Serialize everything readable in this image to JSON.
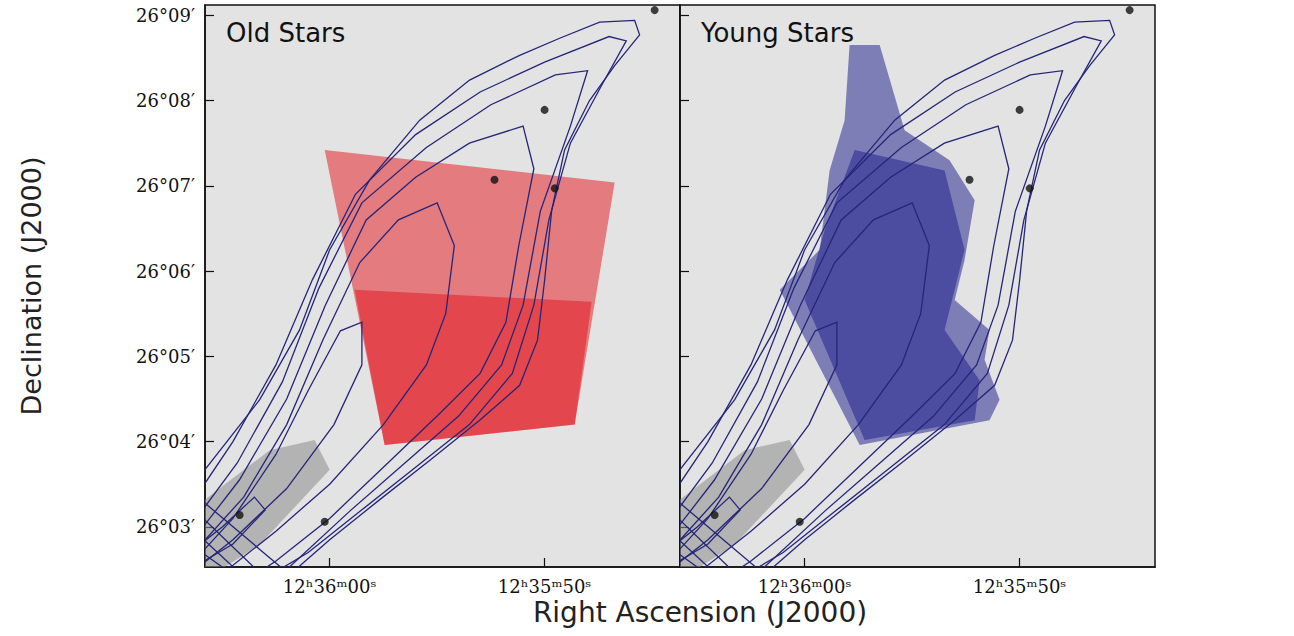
{
  "chart_data": [
    {
      "type": "image_contour",
      "title": "Old Stars",
      "xlabel": "Right Ascension (J2000)",
      "ylabel": "Declination (J2000)",
      "xlim": [
        65.8,
        43.7
      ],
      "ylim": [
        2.53,
        9.12
      ],
      "xticks": [
        {
          "value": 60,
          "label": "12ʰ36ᵐ00ˢ"
        },
        {
          "value": 50,
          "label": "12ʰ35ᵐ50ˢ"
        }
      ],
      "yticks": [
        {
          "value": 3,
          "label": "26°03′"
        },
        {
          "value": 4,
          "label": "26°04′"
        },
        {
          "value": 5,
          "label": "26°05′"
        },
        {
          "value": 6,
          "label": "26°06′"
        },
        {
          "value": 7,
          "label": "26°07′"
        },
        {
          "value": 8,
          "label": "26°08′"
        },
        {
          "value": 9,
          "label": "26°09′"
        }
      ],
      "color": "#e3131b",
      "regions": [
        [
          [
            60.23,
            7.42
          ],
          [
            46.74,
            7.04
          ],
          [
            48.6,
            4.2
          ],
          [
            57.44,
            3.96
          ]
        ],
        [
          [
            58.84,
            5.78
          ],
          [
            47.81,
            5.64
          ],
          [
            48.6,
            4.2
          ],
          [
            57.44,
            3.96
          ]
        ]
      ],
      "galaxy": [
        [
          67.0,
          3.2
        ],
        [
          65.81,
          3.32
        ],
        [
          62.79,
          3.9
        ],
        [
          60.7,
          4.02
        ],
        [
          60.0,
          3.67
        ],
        [
          63.26,
          2.79
        ],
        [
          65.81,
          2.38
        ],
        [
          67.0,
          2.3
        ]
      ],
      "stars": [
        [
          50.0,
          7.89
        ],
        [
          49.53,
          6.97
        ],
        [
          44.88,
          9.06
        ],
        [
          60.23,
          3.06
        ],
        [
          52.33,
          7.07
        ],
        [
          64.19,
          3.14
        ]
      ],
      "contours": [
        [
          [
            66.51,
            3.43
          ],
          [
            65.81,
            3.67
          ],
          [
            63.26,
            4.49
          ],
          [
            61.4,
            5.31
          ],
          [
            60.0,
            6.25
          ],
          [
            58.14,
            7.07
          ],
          [
            55.81,
            7.77
          ],
          [
            53.49,
            8.24
          ],
          [
            51.16,
            8.53
          ],
          [
            49.3,
            8.73
          ],
          [
            47.44,
            8.92
          ],
          [
            45.81,
            8.94
          ],
          [
            45.58,
            8.77
          ],
          [
            46.74,
            8.41
          ],
          [
            47.91,
            8.0
          ],
          [
            49.07,
            7.42
          ],
          [
            49.67,
            6.71
          ],
          [
            50.0,
            5.89
          ],
          [
            50.33,
            5.19
          ],
          [
            51.16,
            4.66
          ],
          [
            53.02,
            4.25
          ],
          [
            55.35,
            3.78
          ],
          [
            57.67,
            3.32
          ],
          [
            60.0,
            2.85
          ],
          [
            61.86,
            2.44
          ]
        ],
        [
          [
            66.5,
            3.25
          ],
          [
            64.5,
            4.0
          ],
          [
            62.5,
            4.9
          ],
          [
            60.8,
            5.9
          ],
          [
            58.8,
            6.9
          ],
          [
            56.0,
            7.6
          ],
          [
            53.0,
            8.1
          ],
          [
            50.0,
            8.45
          ],
          [
            47.0,
            8.75
          ],
          [
            46.2,
            8.7
          ],
          [
            47.3,
            8.2
          ],
          [
            48.8,
            7.5
          ],
          [
            49.8,
            6.6
          ],
          [
            50.5,
            5.6
          ],
          [
            51.5,
            4.8
          ],
          [
            53.5,
            4.2
          ],
          [
            56.0,
            3.7
          ],
          [
            58.5,
            3.2
          ],
          [
            61.0,
            2.7
          ],
          [
            63.0,
            2.4
          ]
        ],
        [
          [
            66.5,
            3.0
          ],
          [
            64.3,
            3.75
          ],
          [
            62.2,
            4.7
          ],
          [
            60.5,
            5.8
          ],
          [
            58.5,
            6.8
          ],
          [
            55.5,
            7.45
          ],
          [
            52.5,
            7.95
          ],
          [
            49.5,
            8.3
          ],
          [
            48.0,
            8.35
          ],
          [
            48.8,
            7.7
          ],
          [
            50.2,
            6.7
          ],
          [
            51.0,
            5.6
          ],
          [
            52.0,
            4.9
          ],
          [
            54.0,
            4.3
          ],
          [
            56.5,
            3.75
          ],
          [
            59.0,
            3.2
          ],
          [
            62.0,
            2.5
          ],
          [
            63.5,
            2.3
          ]
        ],
        [
          [
            66.5,
            2.8
          ],
          [
            64.2,
            3.55
          ],
          [
            62.0,
            4.5
          ],
          [
            60.2,
            5.6
          ],
          [
            58.3,
            6.6
          ],
          [
            56.0,
            7.1
          ],
          [
            53.5,
            7.5
          ],
          [
            51.0,
            7.7
          ],
          [
            50.5,
            7.2
          ],
          [
            51.2,
            6.3
          ],
          [
            51.8,
            5.4
          ],
          [
            53.0,
            4.8
          ],
          [
            55.0,
            4.3
          ],
          [
            57.5,
            3.7
          ],
          [
            60.0,
            3.1
          ],
          [
            62.5,
            2.6
          ],
          [
            64.0,
            2.35
          ]
        ],
        [
          [
            66.5,
            2.65
          ],
          [
            64.0,
            3.35
          ],
          [
            62.0,
            4.2
          ],
          [
            60.3,
            5.2
          ],
          [
            58.6,
            6.1
          ],
          [
            56.8,
            6.6
          ],
          [
            55.0,
            6.8
          ],
          [
            54.2,
            6.3
          ],
          [
            54.6,
            5.5
          ],
          [
            55.5,
            4.9
          ],
          [
            57.5,
            4.2
          ],
          [
            60.0,
            3.5
          ],
          [
            62.5,
            2.95
          ],
          [
            64.5,
            2.55
          ],
          [
            66.5,
            2.3
          ]
        ],
        [
          [
            66.5,
            2.55
          ],
          [
            64.5,
            3.1
          ],
          [
            62.5,
            3.85
          ],
          [
            61.0,
            4.6
          ],
          [
            59.5,
            5.3
          ],
          [
            58.5,
            5.4
          ],
          [
            58.5,
            4.9
          ],
          [
            59.8,
            4.2
          ],
          [
            62.0,
            3.45
          ],
          [
            64.5,
            2.85
          ],
          [
            66.5,
            2.45
          ]
        ],
        [
          [
            66.5,
            2.7
          ],
          [
            65.0,
            3.0
          ],
          [
            63.5,
            3.35
          ],
          [
            63.0,
            3.2
          ],
          [
            64.5,
            2.8
          ],
          [
            66.5,
            2.5
          ]
        ]
      ]
    },
    {
      "type": "image_contour",
      "title": "Young Stars",
      "tick_labels": "x",
      "xlim": [
        65.8,
        43.7
      ],
      "ylim": [
        2.53,
        9.12
      ],
      "xticks": [
        {
          "value": 60,
          "label": "12ʰ36ᵐ00ˢ"
        },
        {
          "value": 50,
          "label": "12ʰ35ᵐ50ˢ"
        }
      ],
      "yticks": [
        {
          "value": 3,
          "label": "26°03′"
        },
        {
          "value": 4,
          "label": "26°04′"
        },
        {
          "value": 5,
          "label": "26°05′"
        },
        {
          "value": 6,
          "label": "26°06′"
        },
        {
          "value": 7,
          "label": "26°07′"
        },
        {
          "value": 8,
          "label": "26°08′"
        },
        {
          "value": 9,
          "label": "26°09′"
        }
      ],
      "color": "#1a1a8c",
      "regions": [
        [
          [
            57.91,
            8.65
          ],
          [
            56.51,
            8.65
          ],
          [
            55.35,
            7.65
          ],
          [
            53.26,
            7.3
          ],
          [
            52.09,
            6.83
          ],
          [
            52.56,
            6.13
          ],
          [
            53.02,
            5.66
          ],
          [
            51.4,
            5.31
          ],
          [
            51.63,
            4.96
          ],
          [
            50.93,
            4.49
          ],
          [
            51.4,
            4.25
          ],
          [
            57.44,
            3.96
          ],
          [
            61.16,
            5.78
          ],
          [
            59.3,
            6.25
          ],
          [
            58.84,
            7.18
          ],
          [
            58.14,
            7.77
          ]
        ],
        [
          [
            57.67,
            7.42
          ],
          [
            53.49,
            7.18
          ],
          [
            52.56,
            6.25
          ],
          [
            53.49,
            5.31
          ],
          [
            51.86,
            4.72
          ],
          [
            52.09,
            4.25
          ],
          [
            57.21,
            4.02
          ],
          [
            60.0,
            5.66
          ],
          [
            59.07,
            6.48
          ]
        ]
      ],
      "galaxy": [
        [
          67.0,
          3.2
        ],
        [
          65.81,
          3.32
        ],
        [
          62.79,
          3.9
        ],
        [
          60.7,
          4.02
        ],
        [
          60.0,
          3.67
        ],
        [
          63.26,
          2.79
        ],
        [
          65.81,
          2.38
        ],
        [
          67.0,
          2.3
        ]
      ],
      "stars": [
        [
          50.0,
          7.89
        ],
        [
          49.53,
          6.97
        ],
        [
          44.88,
          9.06
        ],
        [
          60.23,
          3.06
        ],
        [
          52.33,
          7.07
        ],
        [
          64.19,
          3.14
        ]
      ],
      "contours": [
        [
          [
            66.51,
            3.43
          ],
          [
            65.81,
            3.67
          ],
          [
            63.26,
            4.49
          ],
          [
            61.4,
            5.31
          ],
          [
            60.0,
            6.25
          ],
          [
            58.14,
            7.07
          ],
          [
            55.81,
            7.77
          ],
          [
            53.49,
            8.24
          ],
          [
            51.16,
            8.53
          ],
          [
            49.3,
            8.73
          ],
          [
            47.44,
            8.92
          ],
          [
            45.81,
            8.94
          ],
          [
            45.58,
            8.77
          ],
          [
            46.74,
            8.41
          ],
          [
            47.91,
            8.0
          ],
          [
            49.07,
            7.42
          ],
          [
            49.67,
            6.71
          ],
          [
            50.0,
            5.89
          ],
          [
            50.33,
            5.19
          ],
          [
            51.16,
            4.66
          ],
          [
            53.02,
            4.25
          ],
          [
            55.35,
            3.78
          ],
          [
            57.67,
            3.32
          ],
          [
            60.0,
            2.85
          ],
          [
            61.86,
            2.44
          ]
        ],
        [
          [
            66.5,
            3.25
          ],
          [
            64.5,
            4.0
          ],
          [
            62.5,
            4.9
          ],
          [
            60.8,
            5.9
          ],
          [
            58.8,
            6.9
          ],
          [
            56.0,
            7.6
          ],
          [
            53.0,
            8.1
          ],
          [
            50.0,
            8.45
          ],
          [
            47.0,
            8.75
          ],
          [
            46.2,
            8.7
          ],
          [
            47.3,
            8.2
          ],
          [
            48.8,
            7.5
          ],
          [
            49.8,
            6.6
          ],
          [
            50.5,
            5.6
          ],
          [
            51.5,
            4.8
          ],
          [
            53.5,
            4.2
          ],
          [
            56.0,
            3.7
          ],
          [
            58.5,
            3.2
          ],
          [
            61.0,
            2.7
          ],
          [
            63.0,
            2.4
          ]
        ],
        [
          [
            66.5,
            3.0
          ],
          [
            64.3,
            3.75
          ],
          [
            62.2,
            4.7
          ],
          [
            60.5,
            5.8
          ],
          [
            58.5,
            6.8
          ],
          [
            55.5,
            7.45
          ],
          [
            52.5,
            7.95
          ],
          [
            49.5,
            8.3
          ],
          [
            48.0,
            8.35
          ],
          [
            48.8,
            7.7
          ],
          [
            50.2,
            6.7
          ],
          [
            51.0,
            5.6
          ],
          [
            52.0,
            4.9
          ],
          [
            54.0,
            4.3
          ],
          [
            56.5,
            3.75
          ],
          [
            59.0,
            3.2
          ],
          [
            62.0,
            2.5
          ],
          [
            63.5,
            2.3
          ]
        ],
        [
          [
            66.5,
            2.8
          ],
          [
            64.2,
            3.55
          ],
          [
            62.0,
            4.5
          ],
          [
            60.2,
            5.6
          ],
          [
            58.3,
            6.6
          ],
          [
            56.0,
            7.1
          ],
          [
            53.5,
            7.5
          ],
          [
            51.0,
            7.7
          ],
          [
            50.5,
            7.2
          ],
          [
            51.2,
            6.3
          ],
          [
            51.8,
            5.4
          ],
          [
            53.0,
            4.8
          ],
          [
            55.0,
            4.3
          ],
          [
            57.5,
            3.7
          ],
          [
            60.0,
            3.1
          ],
          [
            62.5,
            2.6
          ],
          [
            64.0,
            2.35
          ]
        ],
        [
          [
            66.5,
            2.65
          ],
          [
            64.0,
            3.35
          ],
          [
            62.0,
            4.2
          ],
          [
            60.3,
            5.2
          ],
          [
            58.6,
            6.1
          ],
          [
            56.8,
            6.6
          ],
          [
            55.0,
            6.8
          ],
          [
            54.2,
            6.3
          ],
          [
            54.6,
            5.5
          ],
          [
            55.5,
            4.9
          ],
          [
            57.5,
            4.2
          ],
          [
            60.0,
            3.5
          ],
          [
            62.5,
            2.95
          ],
          [
            64.5,
            2.55
          ],
          [
            66.5,
            2.3
          ]
        ],
        [
          [
            66.5,
            2.55
          ],
          [
            64.5,
            3.1
          ],
          [
            62.5,
            3.85
          ],
          [
            61.0,
            4.6
          ],
          [
            59.5,
            5.3
          ],
          [
            58.5,
            5.4
          ],
          [
            58.5,
            4.9
          ],
          [
            59.8,
            4.2
          ],
          [
            62.0,
            3.45
          ],
          [
            64.5,
            2.85
          ],
          [
            66.5,
            2.45
          ]
        ],
        [
          [
            66.5,
            2.7
          ],
          [
            65.0,
            3.0
          ],
          [
            63.5,
            3.35
          ],
          [
            63.0,
            3.2
          ],
          [
            64.5,
            2.8
          ],
          [
            66.5,
            2.5
          ]
        ]
      ]
    }
  ]
}
